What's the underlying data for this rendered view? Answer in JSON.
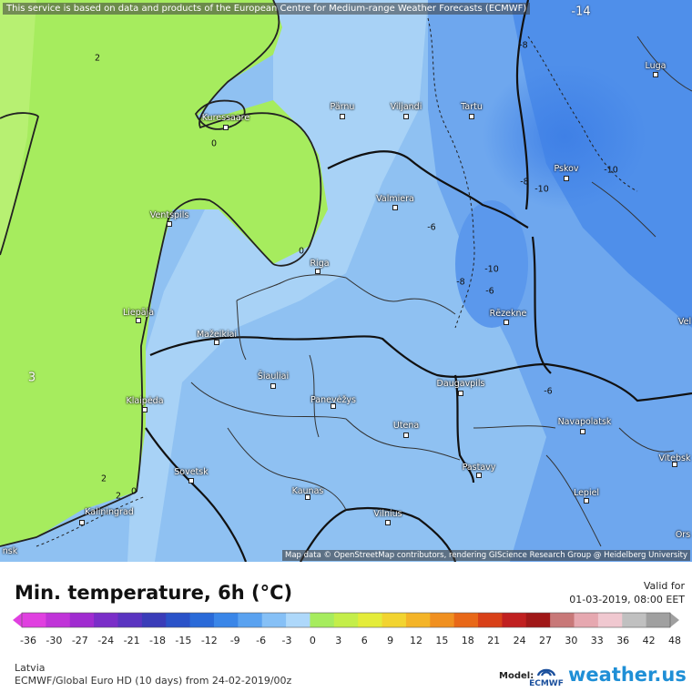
{
  "disclaimer": "This service is based on data and products of the European Centre for Medium-range Weather Forecasts (ECMWF)",
  "map_attribution": "Map data © OpenStreetMap contributors, rendering GIScience Research Group @ Heidelberg University",
  "cities": {
    "kuressaare": "Kuressaare",
    "parnu": "Pärnu",
    "viljandi": "Viljandi",
    "tartu": "Tartu",
    "luga": "Luga",
    "pskov": "Pskov",
    "ventspils": "Ventspils",
    "valmiera": "Valmiera",
    "riga": "Riga",
    "liepaja": "Liepāja",
    "mazeikiai": "Mažeikiai",
    "rezekne": "Rēzekne",
    "siauliai": "Šiauliai",
    "klaipeda": "Klaipėda",
    "panevezys": "Panevėžys",
    "daugavpils": "Daugavpils",
    "navapolatsk": "Navapolatsk",
    "utena": "Utena",
    "sovetsk": "Sovetsk",
    "vitebsk": "Vitebsk",
    "pastavy": "Pastavy",
    "kaunas": "Kaunas",
    "lepiel": "Lepiel",
    "vilnius": "Vilnius",
    "kaliningrad": "Kaliningrad",
    "orsha_partial": "Ors",
    "velikie_partial": "Vel",
    "edge_left": "nsk"
  },
  "contour_labels": {
    "m14": "-14",
    "m8a": "-8",
    "m10a": "-10",
    "m8b": "-8",
    "m10b": "-10",
    "m6a": "-6",
    "m10c": "-10",
    "m8c": "-8",
    "m6b": "-6",
    "m6c": "-6",
    "p2a": "2",
    "p2b": "2",
    "p2c": "2",
    "p0a": "0",
    "p0b": "0",
    "p0c": "0",
    "p3": "3"
  },
  "legend": {
    "title": "Min. temperature, 6h (°C)",
    "valid_label": "Valid for",
    "valid_time": "01-03-2019, 08:00 EET",
    "ticks": [
      "-36",
      "-30",
      "-27",
      "-24",
      "-21",
      "-18",
      "-15",
      "-12",
      "-9",
      "-6",
      "-3",
      "0",
      "3",
      "6",
      "9",
      "12",
      "15",
      "18",
      "21",
      "24",
      "27",
      "30",
      "33",
      "36",
      "42",
      "48"
    ]
  },
  "region": "Latvia",
  "model_line": "ECMWF/Global Euro HD (10 days) from 24-02-2019/00z",
  "model_label": "Model:",
  "ecmwf_logo_text": "ECMWF",
  "brand": "weather.us",
  "colors": {
    "land_green": "#a6ec5e",
    "sea_green": "#9be25b",
    "light_blue": "#9dcaf4",
    "mid_blue": "#79b0f0",
    "deep_blue": "#4f8fea",
    "brand_blue": "#1f8fd6"
  }
}
